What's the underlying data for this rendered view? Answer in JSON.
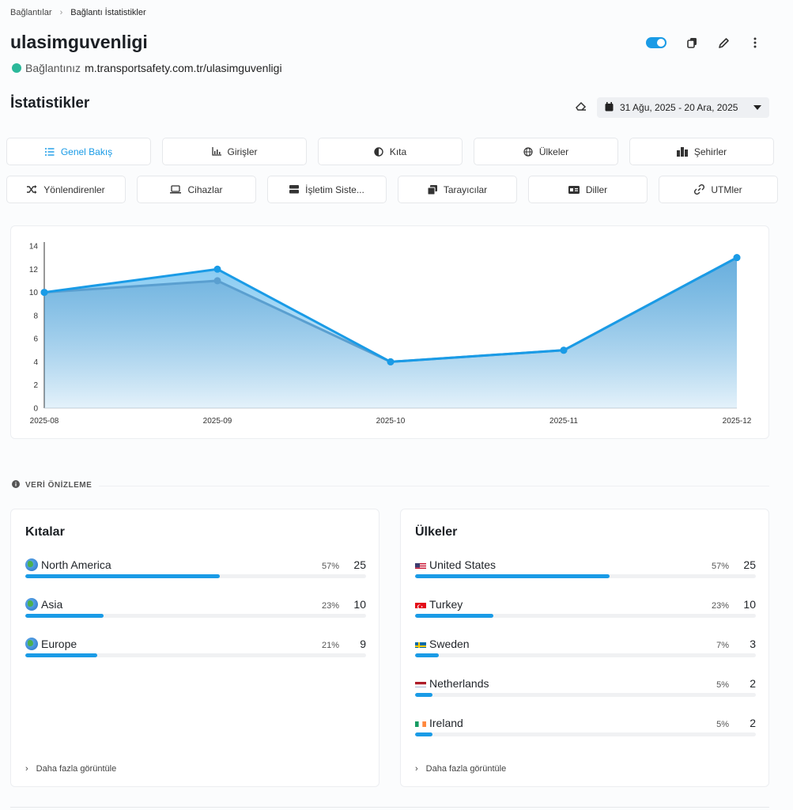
{
  "breadcrumb": {
    "parent": "Bağlantılar",
    "current": "Bağlantı İstatistikler"
  },
  "header": {
    "title": "ulasimguvenligi",
    "connection_label": "Bağlantınız",
    "connection_url": "m.transportsafety.com.tr/ulasimguvenligi",
    "toggle_on": true
  },
  "stats": {
    "title": "İstatistikler",
    "date_range": "31 Ağu, 2025 - 20 Ara, 2025"
  },
  "tabs_row1": [
    {
      "label": "Genel Bakış",
      "icon": "list-icon",
      "active": true
    },
    {
      "label": "Girişler",
      "icon": "bar-chart-icon"
    },
    {
      "label": "Kıta",
      "icon": "globe-half-icon"
    },
    {
      "label": "Ülkeler",
      "icon": "globe-icon"
    },
    {
      "label": "Şehirler",
      "icon": "city-icon"
    }
  ],
  "tabs_row2": [
    {
      "label": "Yönlendirenler",
      "icon": "shuffle-icon"
    },
    {
      "label": "Cihazlar",
      "icon": "laptop-icon"
    },
    {
      "label": "İşletim Siste...",
      "icon": "server-icon"
    },
    {
      "label": "Tarayıcılar",
      "icon": "browser-icon"
    },
    {
      "label": "Diller",
      "icon": "language-icon"
    },
    {
      "label": "UTMler",
      "icon": "link-icon"
    }
  ],
  "chart_data": {
    "type": "area",
    "categories": [
      "2025-08",
      "2025-09",
      "2025-10",
      "2025-11",
      "2025-12"
    ],
    "series": [
      {
        "values": [
          10,
          12,
          4,
          5,
          13
        ],
        "color": "#1a9be6"
      },
      {
        "values": [
          10,
          11,
          4,
          5,
          13
        ],
        "color": "#5a9fd0"
      }
    ],
    "ylim": [
      0,
      14
    ],
    "yticks": [
      0,
      2,
      4,
      6,
      8,
      10,
      12,
      14
    ],
    "grid": false
  },
  "preview": {
    "label": "VERİ ÖNİZLEME"
  },
  "continents": {
    "title": "Kıtalar",
    "items": [
      {
        "name": "North America",
        "pct_label": "57%",
        "count": "25",
        "fraction": 0.57
      },
      {
        "name": "Asia",
        "pct_label": "23%",
        "count": "10",
        "fraction": 0.23
      },
      {
        "name": "Europe",
        "pct_label": "21%",
        "count": "9",
        "fraction": 0.21
      }
    ],
    "more": "Daha fazla görüntüle"
  },
  "countries": {
    "title": "Ülkeler",
    "items": [
      {
        "name": "United States",
        "flag": "us-flag-icon",
        "pct_label": "57%",
        "count": "25",
        "fraction": 0.57
      },
      {
        "name": "Turkey",
        "flag": "tr-flag-icon",
        "pct_label": "23%",
        "count": "10",
        "fraction": 0.23
      },
      {
        "name": "Sweden",
        "flag": "se-flag-icon",
        "pct_label": "7%",
        "count": "3",
        "fraction": 0.07
      },
      {
        "name": "Netherlands",
        "flag": "nl-flag-icon",
        "pct_label": "5%",
        "count": "2",
        "fraction": 0.05
      },
      {
        "name": "Ireland",
        "flag": "ie-flag-icon",
        "pct_label": "5%",
        "count": "2",
        "fraction": 0.05
      }
    ],
    "more": "Daha fazla görüntüle"
  },
  "colors": {
    "accent": "#1a9be6",
    "status_online": "#2bb89a"
  }
}
